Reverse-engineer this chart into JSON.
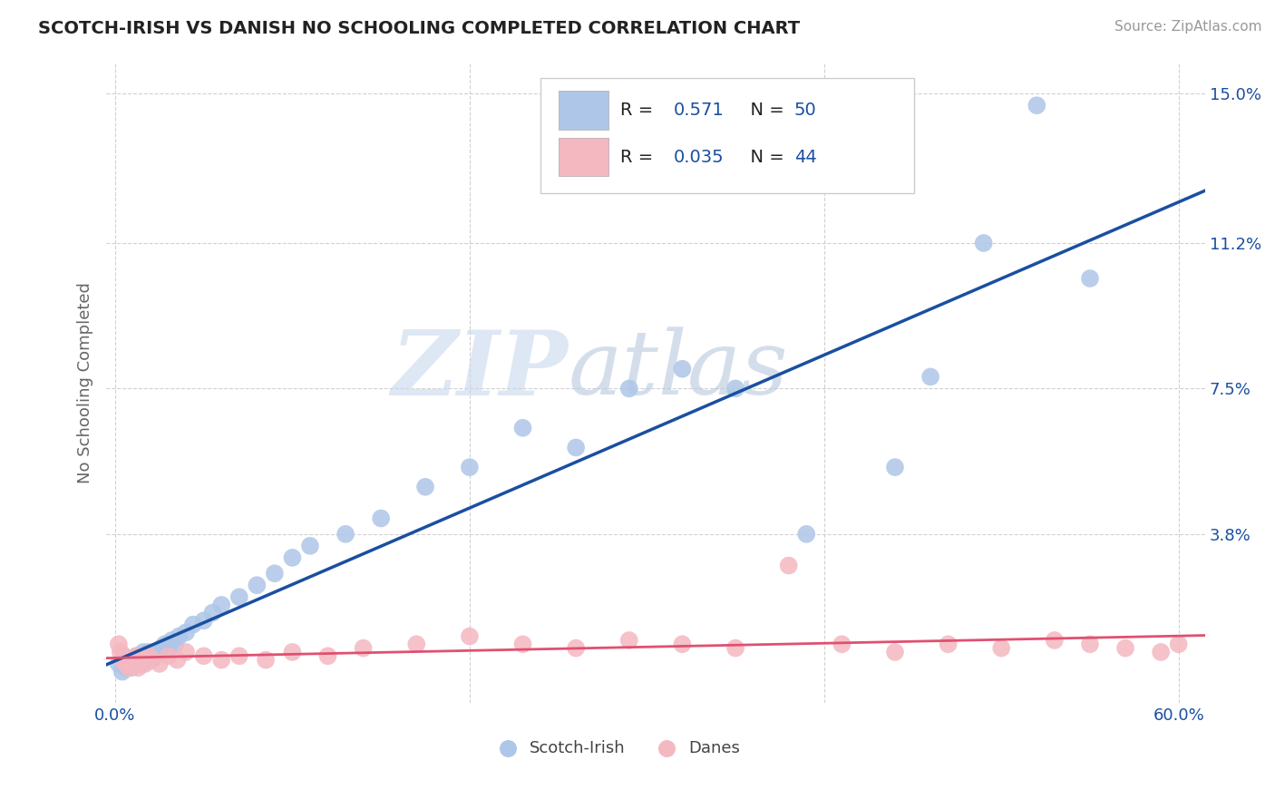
{
  "title": "SCOTCH-IRISH VS DANISH NO SCHOOLING COMPLETED CORRELATION CHART",
  "source": "Source: ZipAtlas.com",
  "ylabel": "No Schooling Completed",
  "xlim": [
    -0.005,
    0.615
  ],
  "ylim": [
    -0.005,
    0.158
  ],
  "xtick_positions": [
    0.0,
    0.6
  ],
  "xticklabels": [
    "0.0%",
    "60.0%"
  ],
  "ytick_positions": [
    0.038,
    0.075,
    0.112,
    0.15
  ],
  "yticklabels": [
    "3.8%",
    "7.5%",
    "11.2%",
    "15.0%"
  ],
  "scotch_irish_R": 0.571,
  "scotch_irish_N": 50,
  "danes_R": 0.035,
  "danes_N": 44,
  "blue_color": "#aec6e8",
  "pink_color": "#f4b8c1",
  "blue_line_color": "#1a4fa0",
  "pink_line_color": "#e05070",
  "scotch_irish_x": [
    0.002,
    0.004,
    0.006,
    0.007,
    0.008,
    0.009,
    0.01,
    0.011,
    0.012,
    0.013,
    0.014,
    0.015,
    0.016,
    0.017,
    0.018,
    0.019,
    0.02,
    0.022,
    0.024,
    0.026,
    0.028,
    0.03,
    0.032,
    0.034,
    0.036,
    0.04,
    0.044,
    0.05,
    0.055,
    0.06,
    0.07,
    0.08,
    0.09,
    0.1,
    0.11,
    0.13,
    0.15,
    0.175,
    0.2,
    0.23,
    0.26,
    0.29,
    0.32,
    0.35,
    0.39,
    0.44,
    0.46,
    0.49,
    0.52,
    0.55
  ],
  "scotch_irish_y": [
    0.005,
    0.003,
    0.004,
    0.006,
    0.005,
    0.004,
    0.006,
    0.005,
    0.007,
    0.006,
    0.007,
    0.005,
    0.008,
    0.006,
    0.007,
    0.008,
    0.006,
    0.007,
    0.008,
    0.009,
    0.01,
    0.009,
    0.011,
    0.01,
    0.012,
    0.013,
    0.015,
    0.016,
    0.018,
    0.02,
    0.022,
    0.025,
    0.028,
    0.032,
    0.035,
    0.038,
    0.042,
    0.05,
    0.055,
    0.065,
    0.06,
    0.075,
    0.08,
    0.075,
    0.038,
    0.055,
    0.078,
    0.112,
    0.147,
    0.103
  ],
  "danes_x": [
    0.002,
    0.003,
    0.004,
    0.005,
    0.006,
    0.007,
    0.008,
    0.009,
    0.01,
    0.011,
    0.012,
    0.013,
    0.015,
    0.017,
    0.019,
    0.021,
    0.025,
    0.03,
    0.035,
    0.04,
    0.05,
    0.06,
    0.07,
    0.085,
    0.1,
    0.12,
    0.14,
    0.17,
    0.2,
    0.23,
    0.26,
    0.29,
    0.32,
    0.35,
    0.38,
    0.41,
    0.44,
    0.47,
    0.5,
    0.53,
    0.55,
    0.57,
    0.59,
    0.6
  ],
  "danes_y": [
    0.01,
    0.008,
    0.006,
    0.007,
    0.005,
    0.006,
    0.004,
    0.005,
    0.006,
    0.005,
    0.007,
    0.004,
    0.006,
    0.005,
    0.007,
    0.006,
    0.005,
    0.007,
    0.006,
    0.008,
    0.007,
    0.006,
    0.007,
    0.006,
    0.008,
    0.007,
    0.009,
    0.01,
    0.012,
    0.01,
    0.009,
    0.011,
    0.01,
    0.009,
    0.03,
    0.01,
    0.008,
    0.01,
    0.009,
    0.011,
    0.01,
    0.009,
    0.008,
    0.01
  ],
  "watermark_zip": "ZIP",
  "watermark_atlas": "atlas",
  "legend_labels": [
    "Scotch-Irish",
    "Danes"
  ],
  "background_color": "#ffffff",
  "grid_color": "#cccccc"
}
